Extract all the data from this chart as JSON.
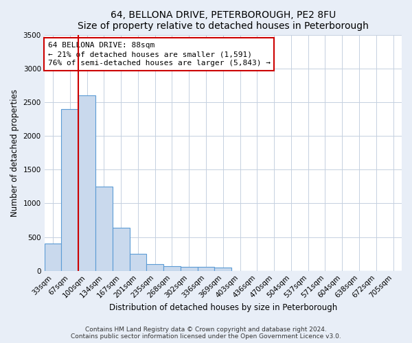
{
  "title": "64, BELLONA DRIVE, PETERBOROUGH, PE2 8FU",
  "subtitle": "Size of property relative to detached houses in Peterborough",
  "xlabel": "Distribution of detached houses by size in Peterborough",
  "ylabel": "Number of detached properties",
  "categories": [
    "33sqm",
    "67sqm",
    "100sqm",
    "134sqm",
    "167sqm",
    "201sqm",
    "235sqm",
    "268sqm",
    "302sqm",
    "336sqm",
    "369sqm",
    "403sqm",
    "436sqm",
    "470sqm",
    "504sqm",
    "537sqm",
    "571sqm",
    "604sqm",
    "638sqm",
    "672sqm",
    "705sqm"
  ],
  "values": [
    400,
    2400,
    2600,
    1250,
    640,
    250,
    100,
    70,
    60,
    55,
    50,
    0,
    0,
    0,
    0,
    0,
    0,
    0,
    0,
    0,
    0
  ],
  "bar_color": "#c9d9ed",
  "bar_edge_color": "#5b9bd5",
  "vline_color": "#cc0000",
  "annotation_text": "64 BELLONA DRIVE: 88sqm\n← 21% of detached houses are smaller (1,591)\n76% of semi-detached houses are larger (5,843) →",
  "annotation_box_color": "white",
  "annotation_box_edge_color": "#cc0000",
  "ylim": [
    0,
    3500
  ],
  "yticks": [
    0,
    500,
    1000,
    1500,
    2000,
    2500,
    3000,
    3500
  ],
  "bg_color": "#e8eef7",
  "plot_bg_color": "white",
  "grid_color": "#c5d0e0",
  "footer": "Contains HM Land Registry data © Crown copyright and database right 2024.\nContains public sector information licensed under the Open Government Licence v3.0.",
  "title_fontsize": 10,
  "xlabel_fontsize": 8.5,
  "ylabel_fontsize": 8.5,
  "tick_fontsize": 7.5,
  "annotation_fontsize": 8,
  "footer_fontsize": 6.5
}
